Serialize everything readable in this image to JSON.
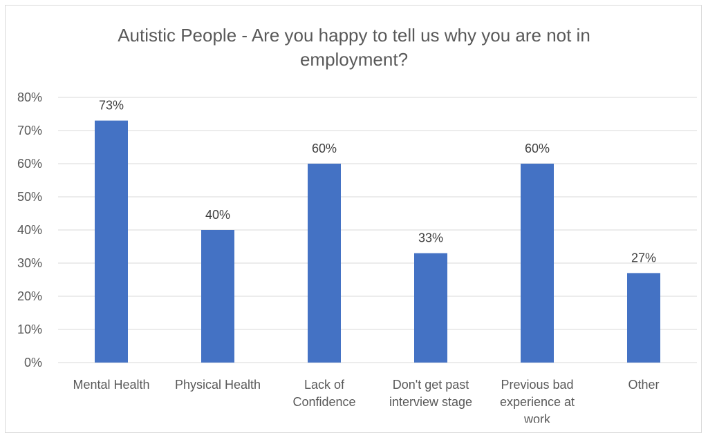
{
  "chart_data": {
    "type": "bar",
    "title_lines": [
      "Autistic People - Are you happy to tell us why you are not in",
      "employment?"
    ],
    "categories": [
      [
        "Mental Health"
      ],
      [
        "Physical Health"
      ],
      [
        "Lack of",
        "Confidence"
      ],
      [
        "Don't get past",
        "interview stage"
      ],
      [
        "Previous bad",
        "experience at",
        "work"
      ],
      [
        "Other"
      ]
    ],
    "values": [
      73,
      40,
      60,
      33,
      60,
      27
    ],
    "data_labels": [
      "73%",
      "40%",
      "60%",
      "33%",
      "60%",
      "27%"
    ],
    "y_ticks": [
      "0%",
      "10%",
      "20%",
      "30%",
      "40%",
      "50%",
      "60%",
      "70%",
      "80%"
    ],
    "ylim": [
      0,
      80
    ],
    "grid": true,
    "bar_color": "#4472c4",
    "grid_color": "#d9d9d9"
  }
}
